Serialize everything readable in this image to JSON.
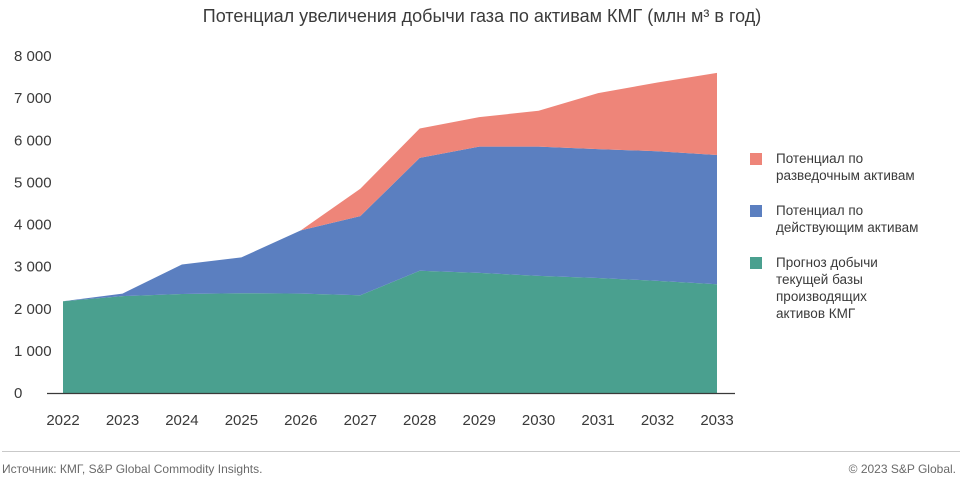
{
  "chart_data": {
    "type": "area",
    "stacked": true,
    "title": "Потенциал увеличения добычи газа по активам КМГ (млн м³ в год)",
    "x": [
      "2022",
      "2023",
      "2024",
      "2025",
      "2026",
      "2027",
      "2028",
      "2029",
      "2030",
      "2031",
      "2032",
      "2033"
    ],
    "series": [
      {
        "name": "Прогноз добычи текущей базы производящих активов КМГ",
        "color": "#4aa08f",
        "values": [
          2180,
          2300,
          2350,
          2370,
          2360,
          2320,
          2900,
          2850,
          2780,
          2730,
          2660,
          2580
        ]
      },
      {
        "name": "Потенциал по действующим активам",
        "color": "#5b7fc0",
        "values": [
          0,
          60,
          700,
          850,
          1500,
          1880,
          2680,
          3000,
          3070,
          3060,
          3080,
          3070
        ]
      },
      {
        "name": "Потенциал по разведочным активам",
        "color": "#ee8579",
        "values": [
          0,
          0,
          0,
          0,
          0,
          650,
          700,
          700,
          850,
          1330,
          1630,
          1950
        ]
      }
    ],
    "y_ticks": [
      "0",
      "1 000",
      "2 000",
      "3 000",
      "4 000",
      "5 000",
      "6 000",
      "7 000",
      "8 000"
    ],
    "ylim": [
      0,
      8000
    ],
    "grid": false,
    "legend_position": "right"
  },
  "footer": {
    "source": "Источник: КМГ, S&P Global Commodity Insights.",
    "copyright": "© 2023 S&P Global."
  }
}
